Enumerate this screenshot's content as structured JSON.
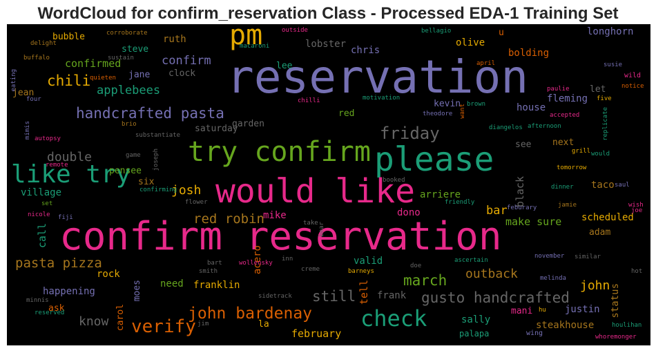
{
  "title": "WordCloud for confirm_reservation Class - Processed EDA-1 Training Set",
  "colors": {
    "pink": "#e7298a",
    "purple": "#7570b3",
    "green": "#1b9e77",
    "orange": "#d95f02",
    "lime": "#66a61e",
    "gold": "#e6ab02",
    "brown": "#a6761d",
    "gray": "#666666",
    "black": "#000000"
  },
  "words": [
    {
      "id": "confirm-reservation",
      "text": "confirm reservation",
      "color": "#e7298a"
    },
    {
      "id": "reservation",
      "text": "reservation",
      "color": "#7570b3"
    },
    {
      "id": "pm",
      "text": "pm",
      "color": "#e6ab02"
    },
    {
      "id": "please",
      "text": "please",
      "color": "#1b9e77"
    },
    {
      "id": "try-confirm",
      "text": "try confirm",
      "color": "#66a61e"
    },
    {
      "id": "would-like",
      "text": "would like",
      "color": "#e7298a"
    },
    {
      "id": "like-try",
      "text": "like try",
      "color": "#1b9e77"
    },
    {
      "id": "check",
      "text": "check",
      "color": "#1b9e77"
    },
    {
      "id": "verify",
      "text": "verify",
      "color": "#d95f02"
    },
    {
      "id": "john-bardenay",
      "text": "john bardenay",
      "color": "#d95f02"
    },
    {
      "id": "gusto-handcrafted",
      "text": "gusto handcrafted",
      "color": "#666666"
    },
    {
      "id": "friday",
      "text": "friday",
      "color": "#666666"
    },
    {
      "id": "handcrafted-pasta",
      "text": "handcrafted pasta",
      "color": "#7570b3"
    },
    {
      "id": "chili",
      "text": "chili",
      "color": "#e6ab02"
    },
    {
      "id": "march",
      "text": "march",
      "color": "#66a61e"
    },
    {
      "id": "pasta-pizza",
      "text": "pasta pizza",
      "color": "#a6761d"
    },
    {
      "id": "red-robin",
      "text": "red robin",
      "color": "#a6761d"
    },
    {
      "id": "still",
      "text": "still",
      "color": "#666666"
    },
    {
      "id": "know",
      "text": "know",
      "color": "#666666"
    },
    {
      "id": "applebees",
      "text": "applebees",
      "color": "#1b9e77"
    },
    {
      "id": "confirm",
      "text": "confirm",
      "color": "#7570b3"
    },
    {
      "id": "double",
      "text": "double",
      "color": "#666666"
    },
    {
      "id": "josh",
      "text": "josh",
      "color": "#e6ab02"
    },
    {
      "id": "confirmed",
      "text": "confirmed",
      "color": "#66a61e"
    },
    {
      "id": "outback",
      "text": "outback",
      "color": "#a6761d"
    },
    {
      "id": "john",
      "text": "john",
      "color": "#e6ab02"
    },
    {
      "id": "make-sure",
      "text": "make sure",
      "color": "#66a61e"
    },
    {
      "id": "february",
      "text": "february",
      "color": "#e6ab02"
    },
    {
      "id": "bar",
      "text": "bar",
      "color": "#e6ab02"
    },
    {
      "id": "steakhouse",
      "text": "steakhouse",
      "color": "#a6761d"
    },
    {
      "id": "ruth",
      "text": "ruth",
      "color": "#a6761d"
    },
    {
      "id": "bubble",
      "text": "bubble",
      "color": "#e6ab02"
    },
    {
      "id": "steve",
      "text": "steve",
      "color": "#1b9e77"
    },
    {
      "id": "jane",
      "text": "jane",
      "color": "#7570b3"
    },
    {
      "id": "jean",
      "text": "jean",
      "color": "#a6761d"
    },
    {
      "id": "clock",
      "text": "clock",
      "color": "#666666"
    },
    {
      "id": "lobster",
      "text": "lobster",
      "color": "#666666"
    },
    {
      "id": "lee",
      "text": "lee",
      "color": "#1b9e77"
    },
    {
      "id": "chris",
      "text": "chris",
      "color": "#7570b3"
    },
    {
      "id": "olive",
      "text": "olive",
      "color": "#e6ab02"
    },
    {
      "id": "u",
      "text": "u",
      "color": "#d95f02"
    },
    {
      "id": "longhorn",
      "text": "longhorn",
      "color": "#7570b3"
    },
    {
      "id": "bolding",
      "text": "bolding",
      "color": "#d95f02"
    },
    {
      "id": "fleming",
      "text": "fleming",
      "color": "#7570b3"
    },
    {
      "id": "let",
      "text": "let",
      "color": "#666666"
    },
    {
      "id": "house",
      "text": "house",
      "color": "#7570b3"
    },
    {
      "id": "kevin",
      "text": "kevin",
      "color": "#7570b3"
    },
    {
      "id": "red",
      "text": "red",
      "color": "#66a61e"
    },
    {
      "id": "saturday",
      "text": "saturday",
      "color": "#666666"
    },
    {
      "id": "garden",
      "text": "garden",
      "color": "#666666"
    },
    {
      "id": "next",
      "text": "next",
      "color": "#a6761d"
    },
    {
      "id": "see",
      "text": "see",
      "color": "#666666"
    },
    {
      "id": "taco",
      "text": "taco",
      "color": "#a6761d"
    },
    {
      "id": "six",
      "text": "six",
      "color": "#a6761d"
    },
    {
      "id": "pensee",
      "text": "pensee",
      "color": "#66a61e"
    },
    {
      "id": "village",
      "text": "village",
      "color": "#1b9e77"
    },
    {
      "id": "arriere",
      "text": "arriere",
      "color": "#66a61e"
    },
    {
      "id": "call",
      "text": "call",
      "color": "#1b9e77"
    },
    {
      "id": "mike",
      "text": "mike",
      "color": "#e7298a"
    },
    {
      "id": "dono",
      "text": "dono",
      "color": "#e7298a"
    },
    {
      "id": "scheduled",
      "text": "scheduled",
      "color": "#e6ab02"
    },
    {
      "id": "adam",
      "text": "adam",
      "color": "#a6761d"
    },
    {
      "id": "valid",
      "text": "valid",
      "color": "#1b9e77"
    },
    {
      "id": "rock",
      "text": "rock",
      "color": "#e6ab02"
    },
    {
      "id": "happening",
      "text": "happening",
      "color": "#7570b3"
    },
    {
      "id": "need",
      "text": "need",
      "color": "#66a61e"
    },
    {
      "id": "franklin",
      "text": "franklin",
      "color": "#e6ab02"
    },
    {
      "id": "frank",
      "text": "frank",
      "color": "#666666"
    },
    {
      "id": "justin",
      "text": "justin",
      "color": "#7570b3"
    },
    {
      "id": "mani",
      "text": "mani",
      "color": "#e7298a"
    },
    {
      "id": "sally",
      "text": "sally",
      "color": "#1b9e77"
    },
    {
      "id": "ask",
      "text": "ask",
      "color": "#d95f02"
    },
    {
      "id": "la",
      "text": "la",
      "color": "#e6ab02"
    },
    {
      "id": "palapa",
      "text": "palapa",
      "color": "#1b9e77"
    },
    {
      "id": "wing",
      "text": "wing",
      "color": "#7570b3"
    },
    {
      "id": "carol",
      "text": "carol",
      "color": "#d95f02"
    },
    {
      "id": "moes",
      "text": "moes",
      "color": "#7570b3"
    },
    {
      "id": "tell",
      "text": "tell",
      "color": "#d95f02"
    },
    {
      "id": "acero",
      "text": "acero",
      "color": "#d95f02"
    },
    {
      "id": "black",
      "text": "black",
      "color": "#666666"
    },
    {
      "id": "status",
      "text": "status",
      "color": "#a6761d"
    },
    {
      "id": "corroborate",
      "text": "corroborate",
      "color": "#a6761d"
    },
    {
      "id": "outside",
      "text": "outside",
      "color": "#e7298a"
    },
    {
      "id": "delight",
      "text": "delight",
      "color": "#a6761d"
    },
    {
      "id": "macaroni",
      "text": "macaroni",
      "color": "#1b9e77"
    },
    {
      "id": "buffalo",
      "text": "buffalo",
      "color": "#a6761d"
    },
    {
      "id": "sustain",
      "text": "sustain",
      "color": "#666666"
    },
    {
      "id": "quieten",
      "text": "quieten",
      "color": "#d95f02"
    },
    {
      "id": "eating",
      "text": "eating",
      "color": "#7570b3"
    },
    {
      "id": "four",
      "text": "four",
      "color": "#7570b3"
    },
    {
      "id": "chilli",
      "text": "chilli",
      "color": "#e7298a"
    },
    {
      "id": "motivation",
      "text": "motivation",
      "color": "#1b9e77"
    },
    {
      "id": "bellagio",
      "text": "bellagio",
      "color": "#1b9e77"
    },
    {
      "id": "april",
      "text": "april",
      "color": "#d95f02"
    },
    {
      "id": "susie",
      "text": "susie",
      "color": "#7570b3"
    },
    {
      "id": "wild",
      "text": "wild",
      "color": "#e7298a"
    },
    {
      "id": "paulie",
      "text": "paulie",
      "color": "#e7298a"
    },
    {
      "id": "notice",
      "text": "notice",
      "color": "#d95f02"
    },
    {
      "id": "five",
      "text": "five",
      "color": "#e6ab02"
    },
    {
      "id": "brown",
      "text": "brown",
      "color": "#1b9e77"
    },
    {
      "id": "theodore",
      "text": "theodore",
      "color": "#7570b3"
    },
    {
      "id": "want",
      "text": "want",
      "color": "#d95f02"
    },
    {
      "id": "accepted",
      "text": "accepted",
      "color": "#e7298a"
    },
    {
      "id": "replicate",
      "text": "replicate",
      "color": "#1b9e77"
    },
    {
      "id": "diangelos",
      "text": "diangelos",
      "color": "#1b9e77"
    },
    {
      "id": "afternoon",
      "text": "afternoon",
      "color": "#1b9e77"
    },
    {
      "id": "grill",
      "text": "grill",
      "color": "#e6ab02"
    },
    {
      "id": "would",
      "text": "would",
      "color": "#1b9e77"
    },
    {
      "id": "tomorrow",
      "text": "tomorrow",
      "color": "#e6ab02"
    },
    {
      "id": "mimis",
      "text": "mimis",
      "color": "#7570b3"
    },
    {
      "id": "autopsy",
      "text": "autopsy",
      "color": "#e7298a"
    },
    {
      "id": "brio",
      "text": "brio",
      "color": "#a6761d"
    },
    {
      "id": "substantiate",
      "text": "substantiate",
      "color": "#666666"
    },
    {
      "id": "remote",
      "text": "remote",
      "color": "#e7298a"
    },
    {
      "id": "game",
      "text": "game",
      "color": "#666666"
    },
    {
      "id": "joseph",
      "text": "joseph",
      "color": "#666666"
    },
    {
      "id": "booked",
      "text": "booked",
      "color": "#666666"
    },
    {
      "id": "confirming",
      "text": "confirming",
      "color": "#1b9e77"
    },
    {
      "id": "flower",
      "text": "flower",
      "color": "#666666"
    },
    {
      "id": "friendly",
      "text": "friendly",
      "color": "#1b9e77"
    },
    {
      "id": "dinner",
      "text": "dinner",
      "color": "#1b9e77"
    },
    {
      "id": "saul",
      "text": "saul",
      "color": "#7570b3"
    },
    {
      "id": "wish",
      "text": "wish",
      "color": "#e7298a"
    },
    {
      "id": "feburary",
      "text": "feburary",
      "color": "#7570b3"
    },
    {
      "id": "jamie",
      "text": "jamie",
      "color": "#a6761d"
    },
    {
      "id": "set",
      "text": "set",
      "color": "#66a61e"
    },
    {
      "id": "nicole",
      "text": "nicole",
      "color": "#e7298a"
    },
    {
      "id": "fiji",
      "text": "fiji",
      "color": "#7570b3"
    },
    {
      "id": "take",
      "text": "take",
      "color": "#666666"
    },
    {
      "id": "bear",
      "text": "bear",
      "color": "#666666"
    },
    {
      "id": "joe",
      "text": "joe",
      "color": "#e7298a"
    },
    {
      "id": "smith",
      "text": "smith",
      "color": "#666666"
    },
    {
      "id": "bart",
      "text": "bart",
      "color": "#666666"
    },
    {
      "id": "wollensky",
      "text": "wollensky",
      "color": "#e7298a"
    },
    {
      "id": "inn",
      "text": "inn",
      "color": "#666666"
    },
    {
      "id": "creme",
      "text": "creme",
      "color": "#666666"
    },
    {
      "id": "barneys",
      "text": "barneys",
      "color": "#e6ab02"
    },
    {
      "id": "doe",
      "text": "doe",
      "color": "#666666"
    },
    {
      "id": "ascertain",
      "text": "ascertain",
      "color": "#1b9e77"
    },
    {
      "id": "november",
      "text": "november",
      "color": "#7570b3"
    },
    {
      "id": "similar",
      "text": "similar",
      "color": "#666666"
    },
    {
      "id": "melinda",
      "text": "melinda",
      "color": "#7570b3"
    },
    {
      "id": "hot",
      "text": "hot",
      "color": "#666666"
    },
    {
      "id": "minnis",
      "text": "minnis",
      "color": "#666666"
    },
    {
      "id": "sidetrack",
      "text": "sidetrack",
      "color": "#666666"
    },
    {
      "id": "reserved",
      "text": "reserved",
      "color": "#1b9e77"
    },
    {
      "id": "jim",
      "text": "jim",
      "color": "#666666"
    },
    {
      "id": "hu",
      "text": "hu",
      "color": "#e6ab02"
    },
    {
      "id": "houlihan",
      "text": "houlihan",
      "color": "#1b9e77"
    },
    {
      "id": "whoremonger",
      "text": "whoremonger",
      "color": "#e7298a"
    }
  ]
}
